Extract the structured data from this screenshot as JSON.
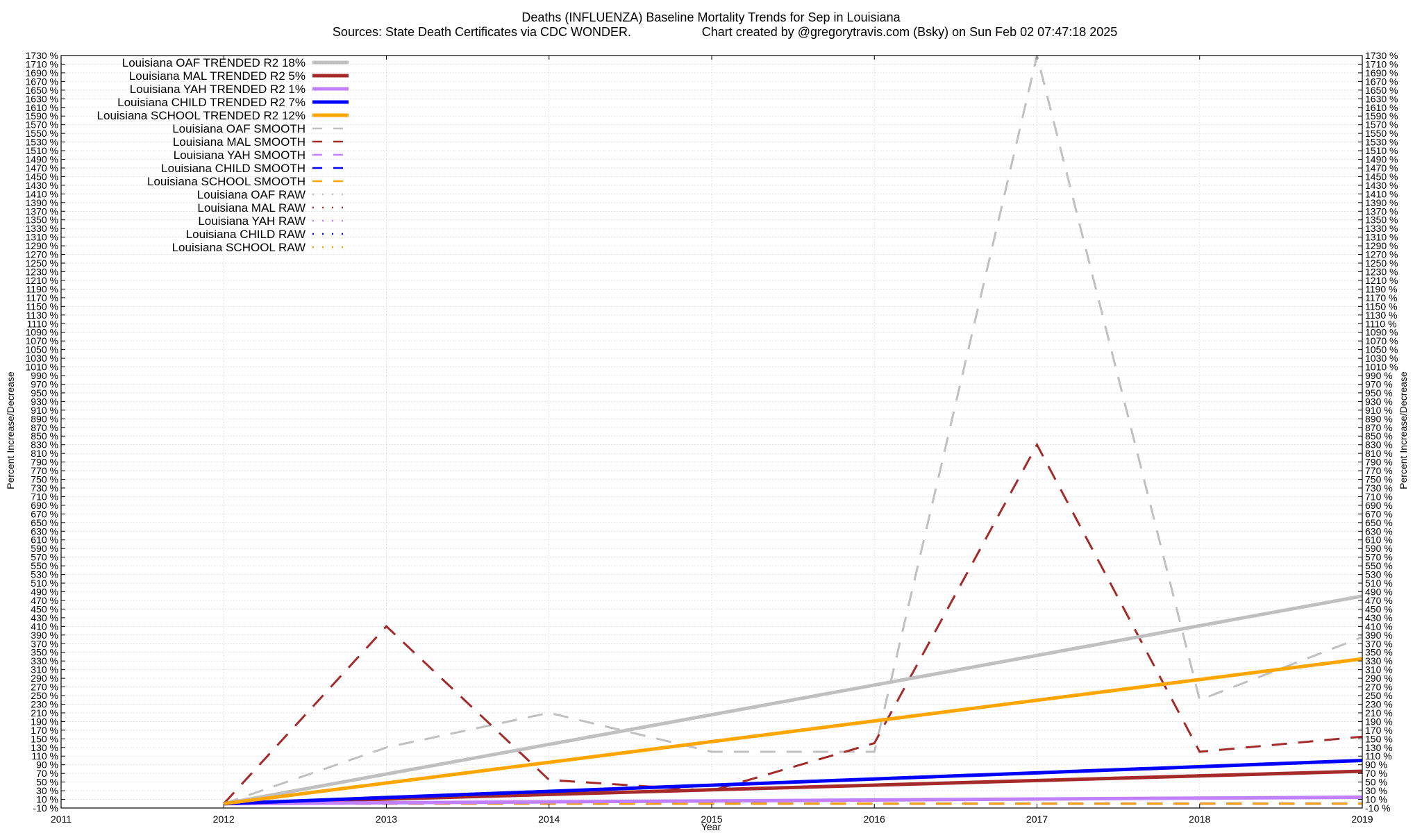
{
  "chart_data": {
    "type": "line",
    "title": "Deaths (INFLUENZA)  Baseline Mortality Trends for Sep in Louisiana",
    "subtitle_left": "Sources: State Death Certificates via CDC WONDER.",
    "subtitle_right": "Chart created by @gregorytravis.com (Bsky) on Sun Feb 02 07:47:18 2025",
    "xlabel": "Year",
    "ylabel_left": "Percent Increase/Decrease",
    "ylabel_right": "Percent Increase/Decrease",
    "xlim": [
      2011,
      2019
    ],
    "ylim": [
      -10,
      1730
    ],
    "x_ticks": [
      2011,
      2012,
      2013,
      2014,
      2015,
      2016,
      2017,
      2018,
      2019
    ],
    "y_tick_step": 20,
    "y_tick_suffix": " %",
    "grid": true,
    "legend_position": "top-left",
    "series": [
      {
        "name": "Louisiana OAF TRENDED R2  18%",
        "color": "#c0c0c0",
        "style": "solid",
        "width": 5,
        "x": [
          2012,
          2019
        ],
        "y": [
          0,
          480
        ]
      },
      {
        "name": "Louisiana MAL TRENDED R2   5%",
        "color": "#a52a2a",
        "style": "solid",
        "width": 5,
        "x": [
          2012,
          2019
        ],
        "y": [
          0,
          75
        ]
      },
      {
        "name": "Louisiana YAH TRENDED R2   1%",
        "color": "#c080ff",
        "style": "solid",
        "width": 5,
        "x": [
          2012,
          2019
        ],
        "y": [
          0,
          15
        ]
      },
      {
        "name": "Louisiana CHILD TRENDED R2   7%",
        "color": "#0000ff",
        "style": "solid",
        "width": 5,
        "x": [
          2012,
          2019
        ],
        "y": [
          0,
          100
        ]
      },
      {
        "name": "Louisiana SCHOOL TRENDED R2  12%",
        "color": "#ffa500",
        "style": "solid",
        "width": 5,
        "x": [
          2012,
          2019
        ],
        "y": [
          0,
          335
        ]
      },
      {
        "name": "Louisiana OAF SMOOTH",
        "color": "#c0c0c0",
        "style": "dashed",
        "width": 3,
        "x": [
          2012,
          2013,
          2014,
          2015,
          2016,
          2017,
          2018,
          2019
        ],
        "y": [
          0,
          130,
          210,
          120,
          120,
          1730,
          240,
          385
        ]
      },
      {
        "name": "Louisiana MAL SMOOTH",
        "color": "#a52a2a",
        "style": "dashed",
        "width": 3,
        "x": [
          2012,
          2013,
          2014,
          2015,
          2016,
          2017,
          2018,
          2019
        ],
        "y": [
          0,
          410,
          55,
          30,
          140,
          830,
          120,
          155
        ]
      },
      {
        "name": "Louisiana YAH SMOOTH",
        "color": "#c080ff",
        "style": "dashed",
        "width": 3,
        "x": [
          2012,
          2013,
          2014,
          2015,
          2016,
          2017,
          2018,
          2019
        ],
        "y": [
          0,
          0,
          0,
          0,
          0,
          0,
          0,
          0
        ]
      },
      {
        "name": "Louisiana CHILD SMOOTH",
        "color": "#0000ff",
        "style": "dashed",
        "width": 3,
        "x": [
          2012,
          2013,
          2014,
          2015,
          2016,
          2017,
          2018,
          2019
        ],
        "y": [
          0,
          0,
          0,
          0,
          0,
          0,
          0,
          0
        ]
      },
      {
        "name": "Louisiana SCHOOL SMOOTH",
        "color": "#ffa500",
        "style": "dashed",
        "width": 3,
        "x": [
          2012,
          2013,
          2014,
          2015,
          2016,
          2017,
          2018,
          2019
        ],
        "y": [
          0,
          0,
          0,
          0,
          0,
          0,
          0,
          0
        ]
      },
      {
        "name": "Louisiana OAF RAW",
        "color": "#c0c0c0",
        "style": "dotted",
        "width": 3,
        "x": [],
        "y": []
      },
      {
        "name": "Louisiana MAL RAW",
        "color": "#a52a2a",
        "style": "dotted",
        "width": 3,
        "x": [],
        "y": []
      },
      {
        "name": "Louisiana YAH RAW",
        "color": "#c080ff",
        "style": "dotted",
        "width": 3,
        "x": [],
        "y": []
      },
      {
        "name": "Louisiana CHILD RAW",
        "color": "#0000ff",
        "style": "dotted",
        "width": 3,
        "x": [],
        "y": []
      },
      {
        "name": "Louisiana SCHOOL RAW",
        "color": "#ffa500",
        "style": "dotted",
        "width": 3,
        "x": [],
        "y": []
      }
    ]
  }
}
